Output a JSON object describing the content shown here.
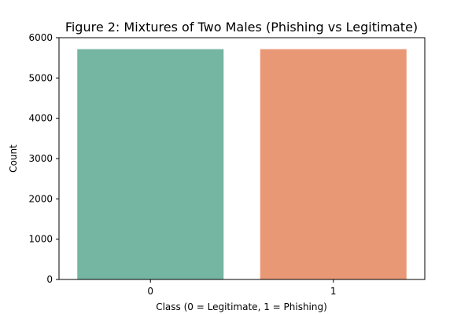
{
  "chart_data": {
    "type": "bar",
    "title": "Figure 2: Mixtures of Two Males (Phishing vs Legitimate)",
    "xlabel": "Class (0 = Legitimate, 1 = Phishing)",
    "ylabel": "Count",
    "categories": [
      "0",
      "1"
    ],
    "values": [
      5715,
      5715
    ],
    "ylim": [
      0,
      6000
    ],
    "yticks": [
      0,
      1000,
      2000,
      3000,
      4000,
      5000,
      6000
    ],
    "bar_colors": [
      "#74b6a2",
      "#e99875"
    ],
    "grid": false,
    "legend": "none"
  }
}
